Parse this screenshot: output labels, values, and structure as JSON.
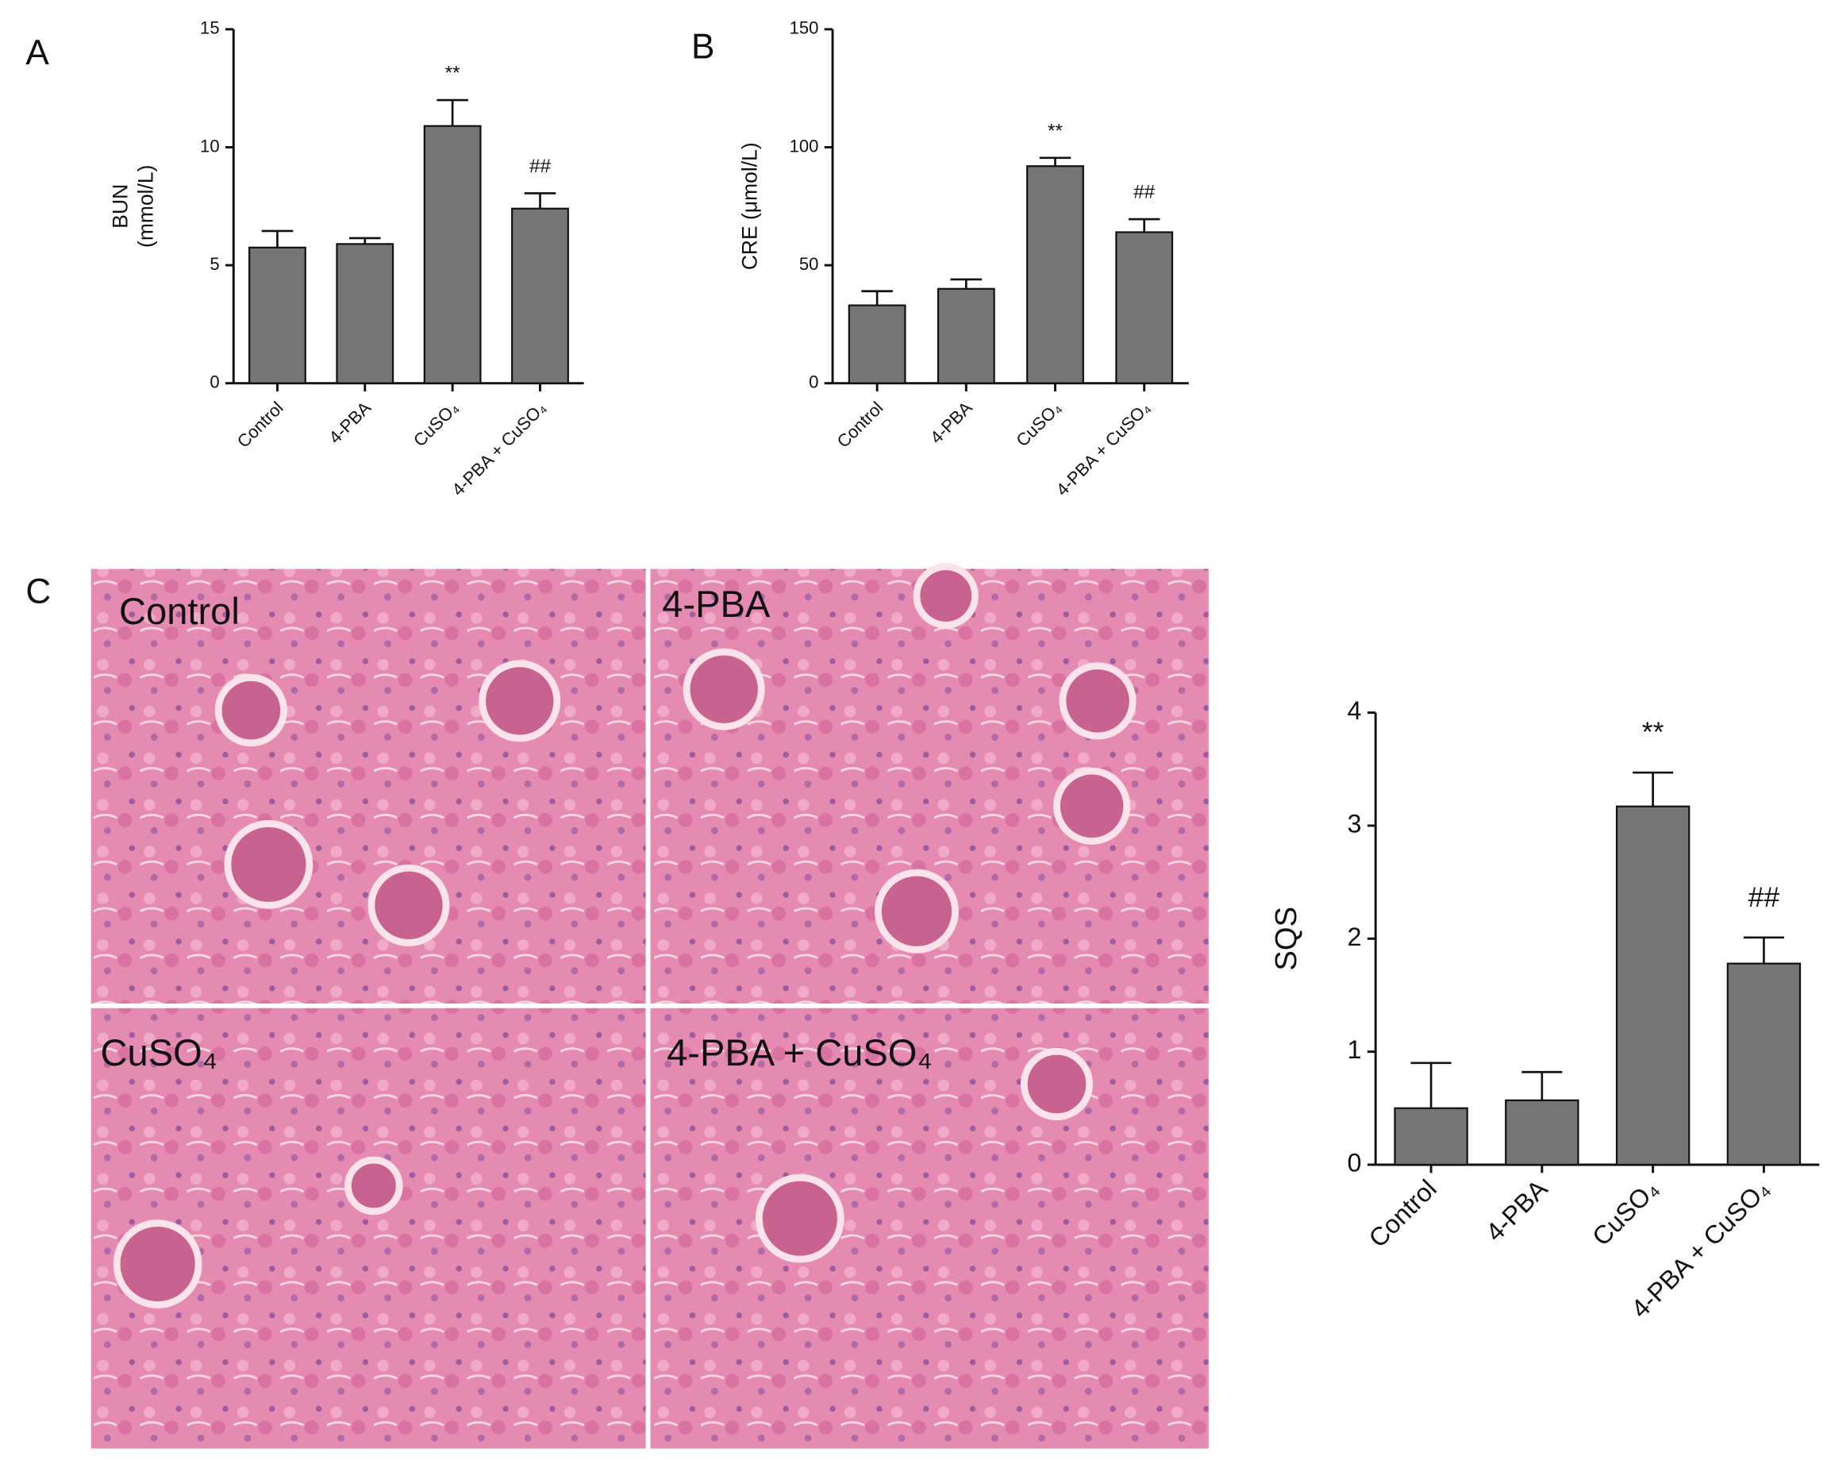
{
  "panels": [
    "A",
    "B",
    "C"
  ],
  "images": [
    "Control",
    "4-PBA",
    "CuSO₄",
    "4-PBA + CuSO₄"
  ],
  "chart_data": [
    {
      "type": "bar",
      "ylabel": [
        "BUN",
        "(mmol/L)"
      ],
      "categories": [
        "Control",
        "4-PBA",
        "CuSO₄",
        "4-PBA + CuSO₄"
      ],
      "values": [
        5.75,
        5.9,
        10.9,
        7.4
      ],
      "errors": [
        0.7,
        0.25,
        1.1,
        0.65
      ],
      "annotations": [
        null,
        null,
        "**",
        "##"
      ],
      "color": "#757575",
      "ylim": [
        0,
        15
      ],
      "yticks": [
        0,
        5,
        10,
        15
      ]
    },
    {
      "type": "bar",
      "ylabel": [
        "CRE (μmol/L)"
      ],
      "categories": [
        "Control",
        "4-PBA",
        "CuSO₄",
        "4-PBA + CuSO₄"
      ],
      "values": [
        33,
        40,
        92,
        64
      ],
      "errors": [
        6,
        4,
        3.5,
        5.5
      ],
      "annotations": [
        null,
        null,
        "**",
        "##"
      ],
      "color": "#757575",
      "ylim": [
        0,
        150
      ],
      "yticks": [
        0,
        50,
        100,
        150
      ]
    },
    {
      "type": "bar",
      "ylabel": [
        "SQS"
      ],
      "categories": [
        "Control",
        "4-PBA",
        "CuSO₄",
        "4-PBA + CuSO₄"
      ],
      "values": [
        0.5,
        0.57,
        3.17,
        1.78
      ],
      "errors": [
        0.4,
        0.25,
        0.3,
        0.23
      ],
      "annotations": [
        null,
        null,
        "**",
        "##"
      ],
      "color": "#757575",
      "ylim": [
        0,
        4
      ],
      "yticks": [
        0,
        1,
        2,
        3,
        4
      ]
    }
  ]
}
